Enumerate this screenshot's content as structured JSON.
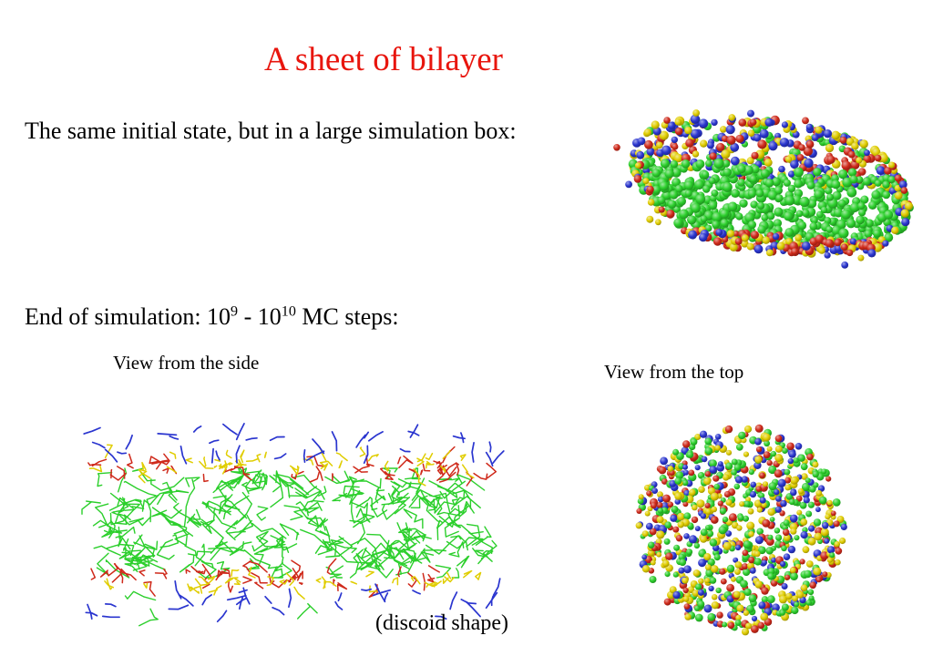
{
  "slide": {
    "title": "A sheet of bilayer",
    "intro_text": "The same initial state, but in a large simulation box:",
    "end_line": {
      "prefix": "End of simulation: 10",
      "sup1": "9",
      "middle": " - 10",
      "sup2": "10",
      "suffix": " MC steps:"
    },
    "side_view_label": "View from the side",
    "top_view_label": "View from the top",
    "caption": "(discoid shape)"
  },
  "colors": {
    "background": "#ffffff",
    "body_text": "#000000",
    "title_red": "#e8150d",
    "bead_green": "#2ccf2c",
    "bead_yellow": "#e0cd00",
    "bead_red": "#cf291a",
    "bead_blue": "#2a35cf"
  },
  "figures": {
    "initial_state": "bilayer-sheet-3d-oblique-render",
    "side_view": "bilayer-cross-section-line-render",
    "top_view": "bilayer-discoid-bead-render"
  }
}
